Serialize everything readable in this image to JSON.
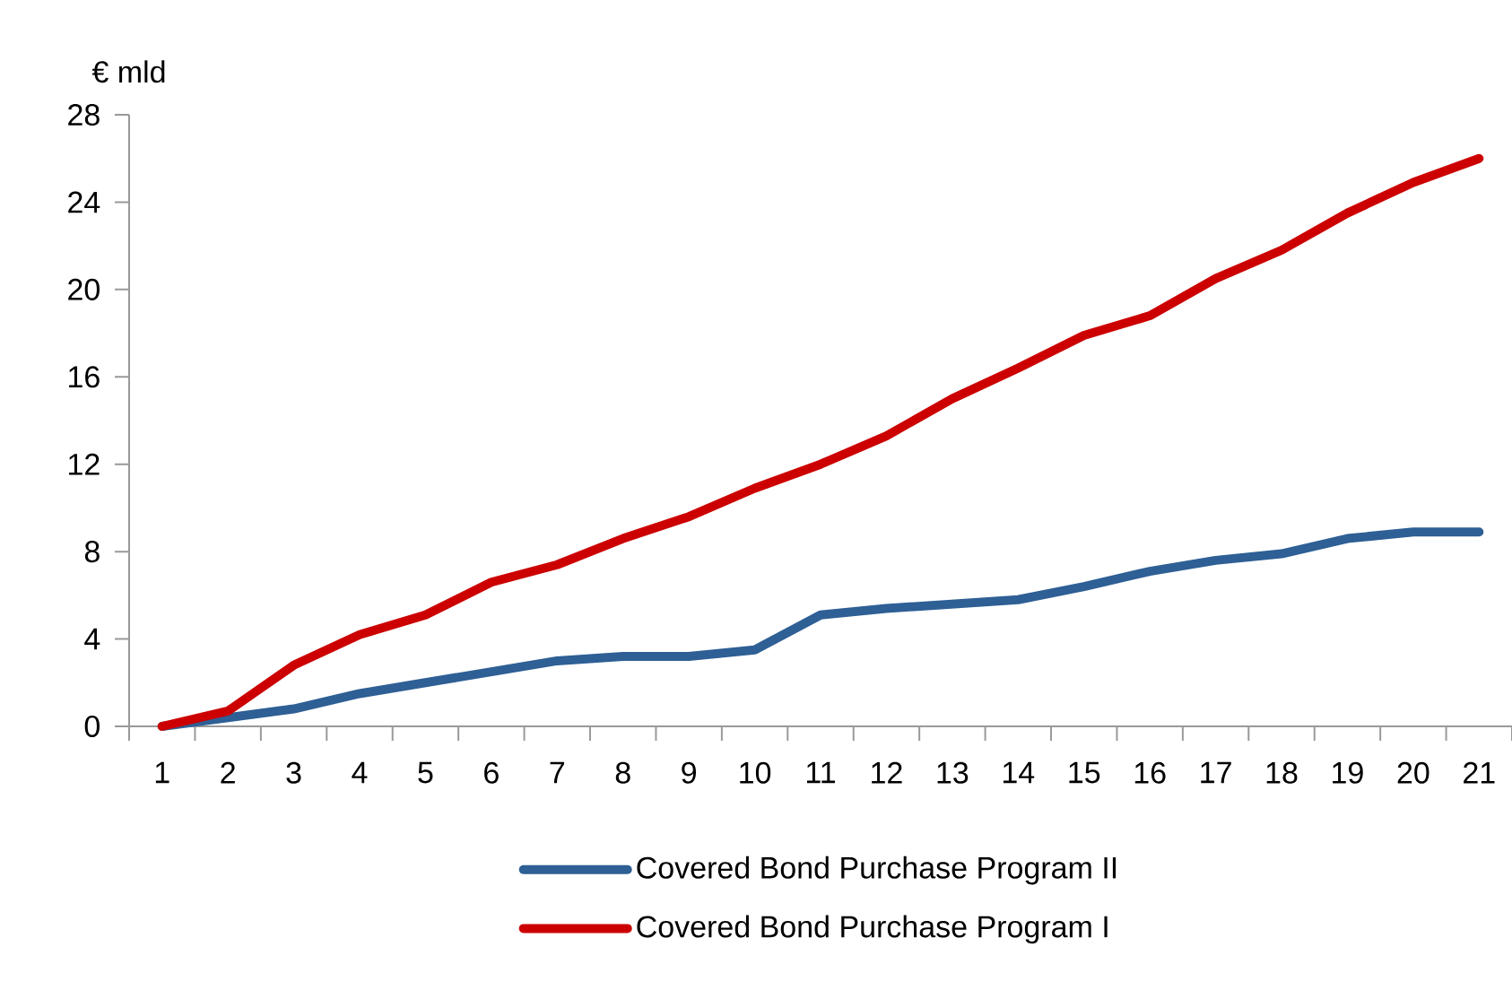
{
  "chart_data": {
    "type": "line",
    "ylabel": "€ mld",
    "categories": [
      "1",
      "2",
      "3",
      "4",
      "5",
      "6",
      "7",
      "8",
      "9",
      "10",
      "11",
      "12",
      "13",
      "14",
      "15",
      "16",
      "17",
      "18",
      "19",
      "20",
      "21"
    ],
    "series": [
      {
        "name": "Covered Bond Purchase Program II",
        "color": "#2e5f95",
        "values": [
          0,
          0.4,
          0.8,
          1.5,
          2.0,
          2.5,
          3.0,
          3.2,
          3.2,
          3.5,
          5.1,
          5.4,
          5.6,
          5.8,
          6.4,
          7.1,
          7.6,
          7.9,
          8.6,
          8.9,
          8.9
        ]
      },
      {
        "name": "Covered Bond Purchase Program I",
        "color": "#cc0000",
        "values": [
          0,
          0.7,
          2.8,
          4.2,
          5.1,
          6.6,
          7.4,
          8.6,
          9.6,
          10.9,
          12.0,
          13.3,
          15.0,
          16.4,
          17.9,
          18.8,
          20.5,
          21.8,
          23.5,
          24.9,
          26.0
        ]
      }
    ],
    "ylim": [
      0,
      28
    ],
    "yticks": [
      0,
      4,
      8,
      12,
      16,
      20,
      24,
      28
    ],
    "grid": false,
    "legend": "bottom",
    "marker": "none",
    "line_style": "solid"
  }
}
